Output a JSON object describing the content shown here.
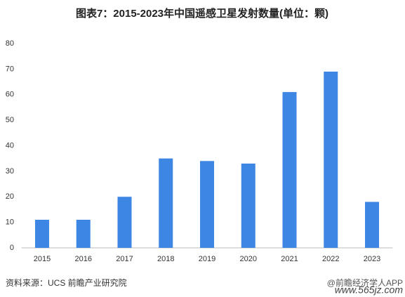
{
  "chart_data": {
    "type": "bar",
    "title": "图表7：2015-2023年中国遥感卫星发射数量(单位：颗)",
    "categories": [
      "2015",
      "2016",
      "2017",
      "2018",
      "2019",
      "2020",
      "2021",
      "2022",
      "2023"
    ],
    "values": [
      11,
      11,
      20,
      35,
      34,
      33,
      61,
      69,
      18
    ],
    "color": "#3e86e3",
    "ylim": [
      0,
      80
    ],
    "yticks": [
      0,
      10,
      20,
      30,
      40,
      50,
      60,
      70,
      80
    ],
    "grid": false,
    "source": "资料来源：UCS 前瞻产业研究院",
    "watermark": "@前瞻经济学人APP",
    "site": "www.565jz.com"
  }
}
